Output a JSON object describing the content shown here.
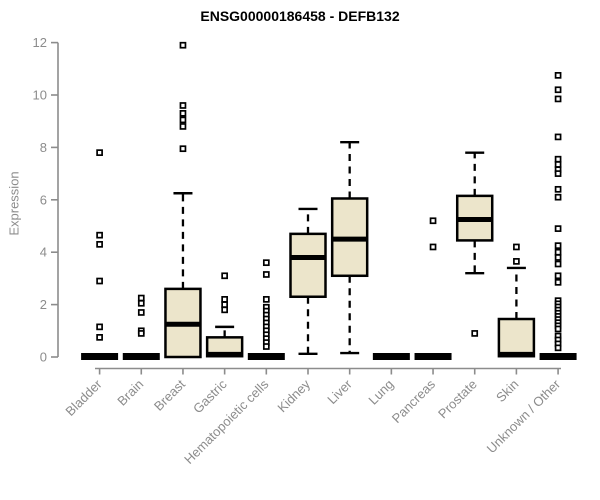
{
  "chart_data": {
    "type": "boxplot",
    "title": "ENSG00000186458 - DEFB132",
    "ylabel": "Expression",
    "xlabel": "",
    "ylim": [
      0,
      12
    ],
    "yticks": [
      0,
      2,
      4,
      6,
      8,
      10,
      12
    ],
    "grid": false,
    "legend": "none",
    "categories": [
      "Bladder",
      "Brain",
      "Breast",
      "Gastric",
      "Hematopoietic cells",
      "Kidney",
      "Liver",
      "Lung",
      "Pancreas",
      "Prostate",
      "Skin",
      "Unknown / Other"
    ],
    "boxes": [
      {
        "category": "Bladder",
        "collapsed": true,
        "q1": 0,
        "median": 0,
        "q3": 0,
        "whisker_low": 0,
        "whisker_high": 0,
        "outliers": [
          7.8,
          4.65,
          4.3,
          2.9,
          1.15,
          0.75
        ]
      },
      {
        "category": "Brain",
        "collapsed": true,
        "q1": 0,
        "median": 0,
        "q3": 0,
        "whisker_low": 0,
        "whisker_high": 0,
        "outliers": [
          2.25,
          2.05,
          1.7,
          1.0,
          0.9
        ]
      },
      {
        "category": "Breast",
        "collapsed": false,
        "q1": 0,
        "median": 1.25,
        "q3": 2.6,
        "whisker_low": 0,
        "whisker_high": 6.25,
        "outliers": [
          11.9,
          9.6,
          9.3,
          9.05,
          8.8,
          7.95
        ]
      },
      {
        "category": "Gastric",
        "collapsed": false,
        "q1": 0.03,
        "median": 0.1,
        "q3": 0.75,
        "whisker_low": 0.03,
        "whisker_high": 1.15,
        "outliers": [
          3.1,
          2.2,
          2.0,
          1.8
        ]
      },
      {
        "category": "Hematopoietic cells",
        "collapsed": true,
        "q1": 0,
        "median": 0,
        "q3": 0,
        "whisker_low": 0,
        "whisker_high": 0,
        "outliers": [
          3.6,
          3.15,
          2.2,
          1.9,
          1.75,
          1.6,
          1.45,
          1.3,
          1.15,
          1.0,
          0.85,
          0.7,
          0.55,
          0.4
        ]
      },
      {
        "category": "Kidney",
        "collapsed": false,
        "q1": 2.3,
        "median": 3.8,
        "q3": 4.7,
        "whisker_low": 0.12,
        "whisker_high": 5.65,
        "outliers": []
      },
      {
        "category": "Liver",
        "collapsed": false,
        "q1": 3.1,
        "median": 4.5,
        "q3": 6.05,
        "whisker_low": 0.15,
        "whisker_high": 8.2,
        "outliers": []
      },
      {
        "category": "Lung",
        "collapsed": true,
        "q1": 0,
        "median": 0,
        "q3": 0,
        "whisker_low": 0,
        "whisker_high": 0,
        "outliers": []
      },
      {
        "category": "Pancreas",
        "collapsed": true,
        "q1": 0,
        "median": 0,
        "q3": 0,
        "whisker_low": 0,
        "whisker_high": 0,
        "outliers": [
          5.2,
          4.2
        ]
      },
      {
        "category": "Prostate",
        "collapsed": false,
        "q1": 4.45,
        "median": 5.25,
        "q3": 6.15,
        "whisker_low": 3.2,
        "whisker_high": 7.8,
        "outliers": [
          0.9
        ]
      },
      {
        "category": "Skin",
        "collapsed": false,
        "q1": 0.03,
        "median": 0.1,
        "q3": 1.45,
        "whisker_low": 0.03,
        "whisker_high": 3.4,
        "outliers": [
          4.2,
          3.65
        ]
      },
      {
        "category": "Unknown / Other",
        "collapsed": true,
        "q1": 0,
        "median": 0,
        "q3": 0,
        "whisker_low": 0,
        "whisker_high": 0,
        "outliers": [
          10.75,
          10.2,
          9.85,
          8.4,
          7.55,
          7.35,
          7.15,
          7.0,
          6.4,
          6.1,
          4.9,
          4.25,
          4.0,
          3.8,
          3.55,
          3.1,
          2.85,
          2.15,
          2.03,
          1.91,
          1.79,
          1.67,
          1.55,
          1.43,
          1.31,
          1.19,
          1.07,
          0.8,
          0.65,
          0.5,
          0.35
        ]
      }
    ],
    "colors": {
      "box_fill": "#ECE5CB",
      "box_stroke": "#000000",
      "median": "#000000",
      "axis": "#8C8C8C",
      "tick_label": "#8C8C8C",
      "title": "#000000",
      "background": "#FFFFFF"
    }
  }
}
